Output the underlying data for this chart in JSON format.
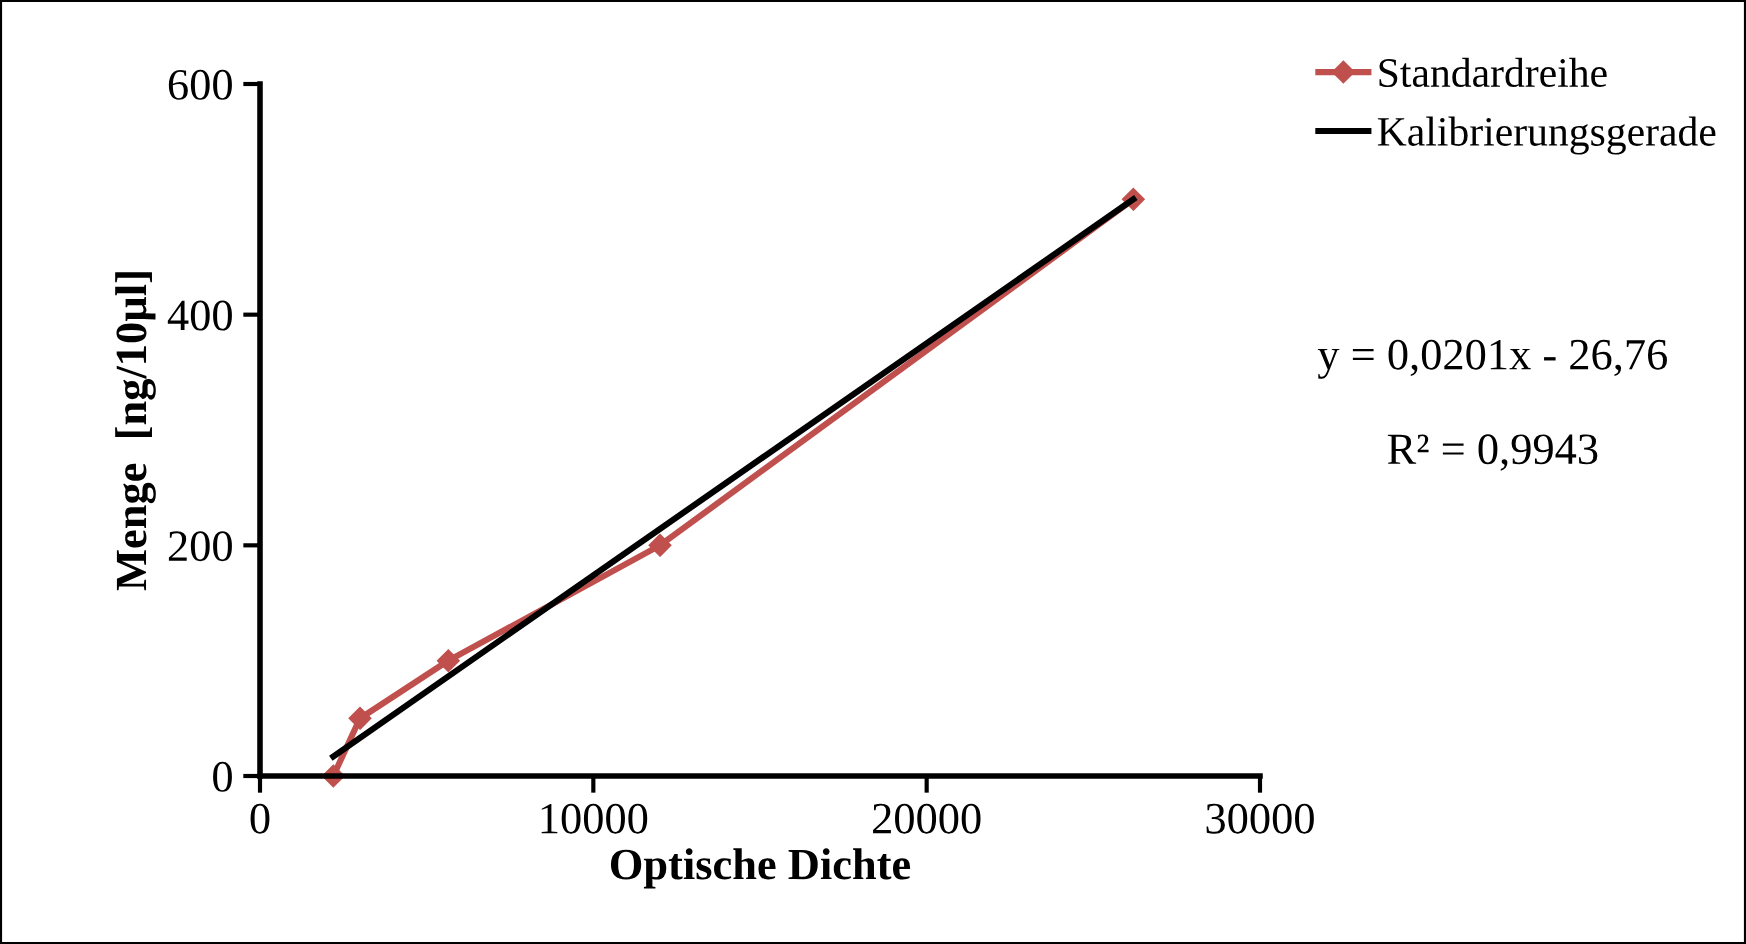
{
  "chart_data": {
    "type": "line",
    "xlabel": "Optische Dichte",
    "ylabel": "Menge  [ng/10µl]",
    "series": [
      {
        "name": "Standardreihe",
        "color": "#c0504d",
        "x": [
          2200,
          3000,
          5650,
          12000,
          26200
        ],
        "values": [
          0,
          50,
          100,
          200,
          500
        ],
        "marker": "diamond"
      },
      {
        "name": "Kalibrierungsgerade",
        "color": "#000000",
        "x": [
          2200,
          26200
        ],
        "values": [
          17,
          500
        ],
        "marker": "none"
      }
    ],
    "xlim": [
      0,
      30000
    ],
    "xticks": [
      0,
      10000,
      20000,
      30000
    ],
    "ylim": [
      0,
      600
    ],
    "yticks": [
      0,
      200,
      400,
      600
    ],
    "grid": false,
    "legend": "top right",
    "line_style": "solid",
    "annotations": [
      "y = 0,0201x - 26,76",
      "R² = 0,9943"
    ]
  }
}
